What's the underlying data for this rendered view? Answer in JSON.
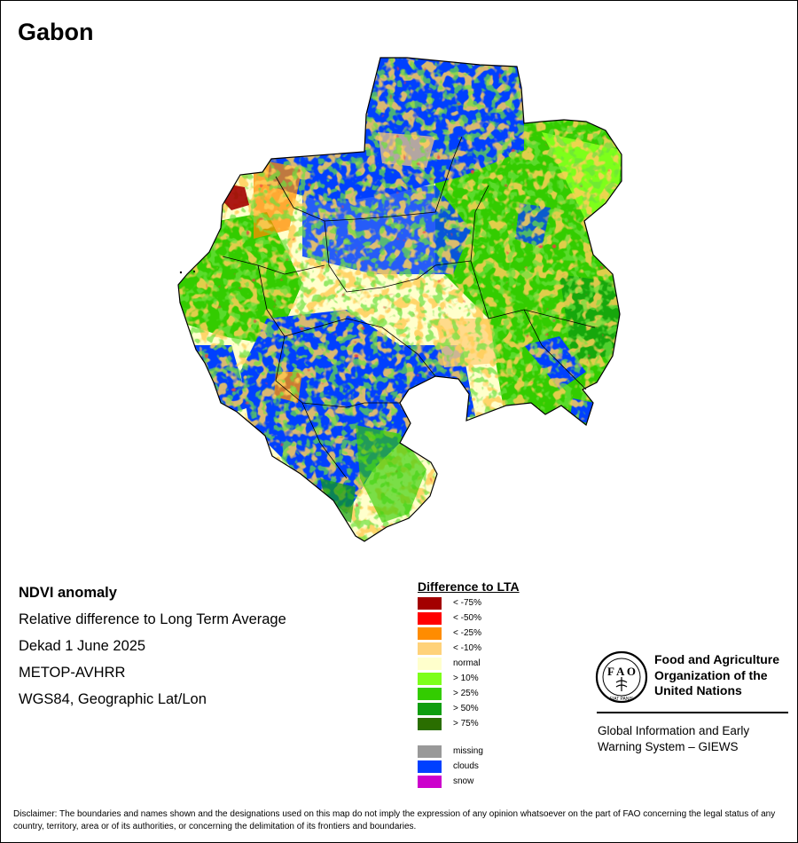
{
  "title": "Gabon",
  "info": {
    "line1": "NDVI anomaly",
    "line2": "Relative difference to Long Term Average",
    "line3": "Dekad 1 June 2025",
    "line4": "METOP-AVHRR",
    "line5": "WGS84, Geographic Lat/Lon"
  },
  "legend": {
    "title": "Difference to LTA",
    "classes": [
      {
        "label": "< -75%",
        "color": "#a30000"
      },
      {
        "label": "< -50%",
        "color": "#ff0000"
      },
      {
        "label": "< -25%",
        "color": "#ff8c00"
      },
      {
        "label": "< -10%",
        "color": "#ffd27a"
      },
      {
        "label": "normal",
        "color": "#ffffcc"
      },
      {
        "label": "> 10%",
        "color": "#7dff1a"
      },
      {
        "label": "> 25%",
        "color": "#33cc00"
      },
      {
        "label": "> 50%",
        "color": "#0f9e0f"
      },
      {
        "label": "> 75%",
        "color": "#2a6e00"
      }
    ],
    "other": [
      {
        "label": "missing",
        "color": "#999999"
      },
      {
        "label": "clouds",
        "color": "#0040ff"
      },
      {
        "label": "snow",
        "color": "#cc00cc"
      }
    ]
  },
  "org": {
    "name_line1": "Food and Agriculture",
    "name_line2": "Organization of the",
    "name_line3": "United Nations",
    "logo_text": "FIAT PANIS",
    "giews_line1": "Global Information and Early",
    "giews_line2": "Warning System – GIEWS"
  },
  "disclaimer": "Disclaimer: The boundaries and names shown and the designations used on this map do not imply the expression of any opinion whatsoever on the part of FAO concerning the legal status of any country, territory, area or of its authorities, or concerning the delimitation of its frontiers and boundaries."
}
